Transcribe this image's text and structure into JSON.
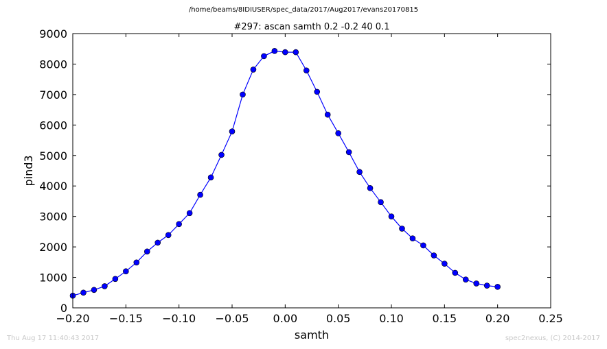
{
  "header": {
    "path": "/home/beams/8IDIUSER/spec_data/2017/Aug2017/evans20170815"
  },
  "footer": {
    "timestamp": "Thu Aug 17 11:40:43 2017",
    "credit": "spec2nexus, (C) 2014-2017"
  },
  "chart_data": {
    "type": "line",
    "title": "#297: ascan  samth 0.2 -0.2  40 0.1",
    "xlabel": "samth",
    "ylabel": "pind3",
    "xlim": [
      -0.2,
      0.25
    ],
    "ylim": [
      0,
      9000
    ],
    "xticks": [
      -0.2,
      -0.15,
      -0.1,
      -0.05,
      0.0,
      0.05,
      0.1,
      0.15,
      0.2,
      0.25
    ],
    "xtick_labels": [
      "−0.20",
      "−0.15",
      "−0.10",
      "−0.05",
      "0.00",
      "0.05",
      "0.10",
      "0.15",
      "0.20",
      "0.25"
    ],
    "yticks": [
      0,
      1000,
      2000,
      3000,
      4000,
      5000,
      6000,
      7000,
      8000,
      9000
    ],
    "ytick_labels": [
      "0",
      "1000",
      "2000",
      "3000",
      "4000",
      "5000",
      "6000",
      "7000",
      "8000",
      "9000"
    ],
    "grid": false,
    "color": "#0000ff",
    "marker": "circle",
    "series": [
      {
        "x": [
          -0.2,
          -0.19,
          -0.18,
          -0.17,
          -0.16,
          -0.15,
          -0.14,
          -0.13,
          -0.12,
          -0.11,
          -0.1,
          -0.09,
          -0.08,
          -0.07,
          -0.06,
          -0.05,
          -0.04,
          -0.03,
          -0.02,
          -0.01,
          0.0,
          0.01,
          0.02,
          0.03,
          0.04,
          0.05,
          0.06,
          0.07,
          0.08,
          0.09,
          0.1,
          0.11,
          0.12,
          0.13,
          0.14,
          0.15,
          0.16,
          0.17,
          0.18,
          0.19,
          0.2
        ],
        "y": [
          400,
          500,
          590,
          710,
          950,
          1200,
          1490,
          1850,
          2140,
          2390,
          2750,
          3110,
          3710,
          4280,
          5020,
          5790,
          7000,
          7820,
          8260,
          8430,
          8390,
          8390,
          7790,
          7090,
          6340,
          5730,
          5110,
          4460,
          3930,
          3470,
          3000,
          2600,
          2280,
          2050,
          1720,
          1450,
          1150,
          930,
          800,
          730,
          690
        ]
      }
    ]
  }
}
